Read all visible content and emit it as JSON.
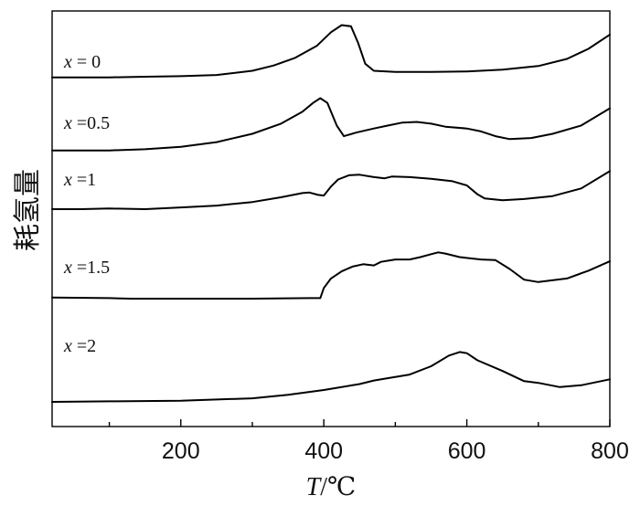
{
  "chart_data": {
    "type": "line",
    "xlabel_var": "T",
    "xlabel_unit": "/℃",
    "ylabel": "耗氢量",
    "xlim": [
      20,
      800
    ],
    "x_ticks": [
      200,
      400,
      600,
      800
    ],
    "x_minor_ticks": [
      100,
      300,
      500,
      700
    ],
    "yticks_shown": false,
    "grid": false,
    "series": [
      {
        "name": "x = 0",
        "label_var": "x",
        "label_rest": " = 0",
        "points": [
          [
            20,
            0.2
          ],
          [
            100,
            0.2
          ],
          [
            150,
            0.3
          ],
          [
            200,
            0.4
          ],
          [
            250,
            0.6
          ],
          [
            300,
            1.3
          ],
          [
            330,
            2.2
          ],
          [
            360,
            3.5
          ],
          [
            390,
            5.5
          ],
          [
            410,
            7.8
          ],
          [
            425,
            9.0
          ],
          [
            438,
            8.8
          ],
          [
            448,
            6.0
          ],
          [
            458,
            2.5
          ],
          [
            470,
            1.3
          ],
          [
            500,
            1.1
          ],
          [
            550,
            1.1
          ],
          [
            600,
            1.2
          ],
          [
            650,
            1.5
          ],
          [
            700,
            2.1
          ],
          [
            740,
            3.3
          ],
          [
            770,
            5.0
          ],
          [
            800,
            7.4
          ]
        ]
      },
      {
        "name": "x =0.5",
        "label_var": "x",
        "label_rest": " =0.5",
        "points": [
          [
            20,
            0.2
          ],
          [
            100,
            0.2
          ],
          [
            150,
            0.4
          ],
          [
            200,
            0.8
          ],
          [
            250,
            1.6
          ],
          [
            300,
            3.0
          ],
          [
            340,
            4.7
          ],
          [
            370,
            6.7
          ],
          [
            385,
            8.2
          ],
          [
            395,
            9.0
          ],
          [
            405,
            8.2
          ],
          [
            418,
            4.4
          ],
          [
            428,
            2.6
          ],
          [
            445,
            3.2
          ],
          [
            470,
            3.9
          ],
          [
            490,
            4.4
          ],
          [
            510,
            4.9
          ],
          [
            530,
            5.0
          ],
          [
            550,
            4.7
          ],
          [
            570,
            4.2
          ],
          [
            600,
            3.9
          ],
          [
            620,
            3.4
          ],
          [
            640,
            2.6
          ],
          [
            660,
            2.1
          ],
          [
            690,
            2.3
          ],
          [
            720,
            3.0
          ],
          [
            760,
            4.4
          ],
          [
            800,
            7.3
          ]
        ]
      },
      {
        "name": "x =1",
        "label_var": "x",
        "label_rest": " =1",
        "points": [
          [
            20,
            0.0
          ],
          [
            60,
            0.0
          ],
          [
            100,
            0.1
          ],
          [
            150,
            0.0
          ],
          [
            200,
            0.3
          ],
          [
            250,
            0.6
          ],
          [
            300,
            1.2
          ],
          [
            340,
            2.0
          ],
          [
            370,
            2.7
          ],
          [
            380,
            2.8
          ],
          [
            392,
            2.4
          ],
          [
            400,
            2.3
          ],
          [
            410,
            3.8
          ],
          [
            420,
            5.0
          ],
          [
            435,
            5.7
          ],
          [
            450,
            5.8
          ],
          [
            470,
            5.4
          ],
          [
            485,
            5.2
          ],
          [
            495,
            5.5
          ],
          [
            520,
            5.4
          ],
          [
            550,
            5.1
          ],
          [
            580,
            4.7
          ],
          [
            600,
            4.0
          ],
          [
            615,
            2.5
          ],
          [
            625,
            1.8
          ],
          [
            650,
            1.5
          ],
          [
            680,
            1.7
          ],
          [
            720,
            2.2
          ],
          [
            760,
            3.5
          ],
          [
            800,
            6.4
          ]
        ]
      },
      {
        "name": "x =1.5",
        "label_var": "x",
        "label_rest": " =1.5",
        "points": [
          [
            20,
            0.2
          ],
          [
            100,
            0.1
          ],
          [
            130,
            0.0
          ],
          [
            150,
            0.0
          ],
          [
            200,
            0.0
          ],
          [
            300,
            0.0
          ],
          [
            380,
            0.1
          ],
          [
            395,
            0.1
          ],
          [
            400,
            1.8
          ],
          [
            410,
            3.4
          ],
          [
            425,
            4.6
          ],
          [
            440,
            5.4
          ],
          [
            455,
            5.8
          ],
          [
            470,
            5.6
          ],
          [
            480,
            6.2
          ],
          [
            490,
            6.4
          ],
          [
            500,
            6.6
          ],
          [
            520,
            6.6
          ],
          [
            535,
            7.0
          ],
          [
            550,
            7.5
          ],
          [
            560,
            7.8
          ],
          [
            570,
            7.6
          ],
          [
            590,
            7.0
          ],
          [
            620,
            6.6
          ],
          [
            640,
            6.5
          ],
          [
            660,
            5.0
          ],
          [
            680,
            3.2
          ],
          [
            700,
            2.8
          ],
          [
            740,
            3.4
          ],
          [
            770,
            4.7
          ],
          [
            800,
            6.3
          ]
        ]
      },
      {
        "name": "x =2",
        "label_var": "x",
        "label_rest": " =2",
        "points": [
          [
            20,
            0.0
          ],
          [
            100,
            0.1
          ],
          [
            200,
            0.2
          ],
          [
            300,
            0.6
          ],
          [
            350,
            1.2
          ],
          [
            400,
            2.0
          ],
          [
            450,
            3.0
          ],
          [
            470,
            3.6
          ],
          [
            490,
            4.0
          ],
          [
            520,
            4.6
          ],
          [
            550,
            6.0
          ],
          [
            575,
            7.8
          ],
          [
            590,
            8.4
          ],
          [
            600,
            8.2
          ],
          [
            615,
            7.0
          ],
          [
            650,
            5.2
          ],
          [
            680,
            3.5
          ],
          [
            700,
            3.2
          ],
          [
            730,
            2.5
          ],
          [
            760,
            2.8
          ],
          [
            800,
            3.8
          ]
        ]
      }
    ]
  }
}
